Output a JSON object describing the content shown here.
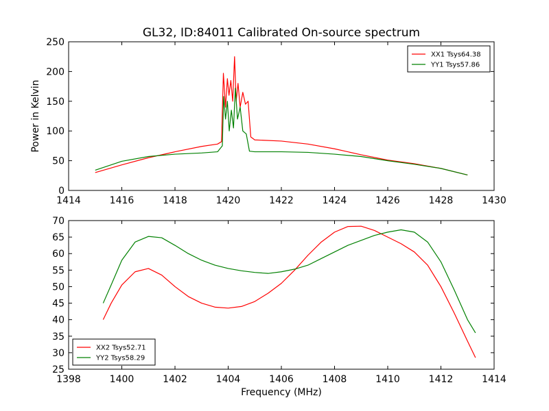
{
  "title": "GL32, ID:84011 Calibrated On-source spectrum",
  "xlabel": "Frequency (MHz)",
  "chart_data": [
    {
      "type": "line",
      "ylabel": "Power in Kelvin",
      "xlim": [
        1414,
        1430
      ],
      "ylim": [
        0,
        250
      ],
      "xticks": [
        1414,
        1416,
        1418,
        1420,
        1422,
        1424,
        1426,
        1428,
        1430
      ],
      "yticks": [
        0,
        50,
        100,
        150,
        200,
        250
      ],
      "legend_position": "top-right",
      "series": [
        {
          "name": "XX1 Tsys64.38",
          "color": "#ff0000",
          "x": [
            1415.0,
            1416.0,
            1417.0,
            1418.0,
            1419.0,
            1419.6,
            1419.75,
            1419.82,
            1419.9,
            1419.97,
            1420.03,
            1420.1,
            1420.17,
            1420.24,
            1420.3,
            1420.37,
            1420.45,
            1420.55,
            1420.65,
            1420.75,
            1420.85,
            1421.0,
            1422.0,
            1423.0,
            1424.0,
            1425.0,
            1426.0,
            1427.0,
            1428.0,
            1429.0
          ],
          "y": [
            30,
            43,
            55,
            65,
            74,
            78,
            82,
            197,
            140,
            188,
            160,
            185,
            150,
            225,
            150,
            180,
            140,
            165,
            145,
            150,
            90,
            85,
            83,
            78,
            70,
            60,
            51,
            45,
            37,
            26
          ]
        },
        {
          "name": "YY1 Tsys57.86",
          "color": "#008000",
          "x": [
            1415.0,
            1416.0,
            1417.0,
            1418.0,
            1419.0,
            1419.6,
            1419.78,
            1419.83,
            1419.9,
            1419.97,
            1420.04,
            1420.12,
            1420.2,
            1420.27,
            1420.35,
            1420.45,
            1420.55,
            1420.68,
            1420.8,
            1421.0,
            1422.0,
            1423.0,
            1424.0,
            1425.0,
            1426.0,
            1427.0,
            1428.0,
            1429.0
          ],
          "y": [
            34,
            49,
            57,
            61,
            63,
            65,
            75,
            158,
            120,
            150,
            100,
            135,
            105,
            172,
            120,
            140,
            100,
            95,
            66,
            65,
            65,
            64,
            61,
            57,
            50,
            44,
            37,
            26
          ]
        }
      ]
    },
    {
      "type": "line",
      "xlabel": "Frequency (MHz)",
      "xlim": [
        1398,
        1414
      ],
      "ylim": [
        25,
        70
      ],
      "xticks": [
        1398,
        1400,
        1402,
        1404,
        1406,
        1408,
        1410,
        1412,
        1414
      ],
      "yticks": [
        25,
        30,
        35,
        40,
        45,
        50,
        55,
        60,
        65,
        70
      ],
      "legend_position": "bottom-left",
      "series": [
        {
          "name": "XX2 Tsys52.71",
          "color": "#ff0000",
          "x": [
            1399.3,
            1399.6,
            1400.0,
            1400.5,
            1401.0,
            1401.5,
            1402.0,
            1402.5,
            1403.0,
            1403.5,
            1404.0,
            1404.5,
            1405.0,
            1405.5,
            1406.0,
            1406.5,
            1407.0,
            1407.5,
            1408.0,
            1408.5,
            1409.0,
            1409.5,
            1410.0,
            1410.5,
            1411.0,
            1411.5,
            1412.0,
            1412.5,
            1413.0,
            1413.3
          ],
          "y": [
            40,
            45,
            50.5,
            54.5,
            55.5,
            53.5,
            50,
            47,
            45,
            43.8,
            43.5,
            44,
            45.5,
            48,
            51,
            55,
            59.5,
            63.5,
            66.5,
            68.2,
            68.3,
            67,
            65,
            63,
            60.5,
            56.5,
            50,
            42,
            33.5,
            28.5
          ]
        },
        {
          "name": "YY2 Tsys58.29",
          "color": "#008000",
          "x": [
            1399.3,
            1399.6,
            1400.0,
            1400.5,
            1401.0,
            1401.5,
            1402.0,
            1402.5,
            1403.0,
            1403.5,
            1404.0,
            1404.5,
            1405.0,
            1405.5,
            1406.0,
            1406.5,
            1407.0,
            1407.5,
            1408.0,
            1408.5,
            1409.0,
            1409.5,
            1410.0,
            1410.5,
            1411.0,
            1411.5,
            1412.0,
            1412.5,
            1413.0,
            1413.3
          ],
          "y": [
            45,
            50.5,
            58,
            63.5,
            65.2,
            64.8,
            62.5,
            60,
            58,
            56.5,
            55.5,
            54.8,
            54.3,
            54,
            54.5,
            55.3,
            56.5,
            58.5,
            60.5,
            62.5,
            64,
            65.5,
            66.5,
            67.2,
            66.5,
            63.5,
            57.5,
            49,
            40,
            36
          ]
        }
      ]
    }
  ]
}
